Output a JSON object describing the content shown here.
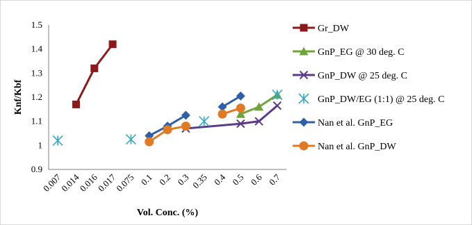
{
  "chart_data": {
    "type": "line",
    "categories": [
      "0.007",
      "0.014",
      "0.016",
      "0.017",
      "0.075",
      "0.1",
      "0.2",
      "0.3",
      "0.35",
      "0.4",
      "0.5",
      "0.6",
      "0.7"
    ],
    "xlabel": "Vol. Conc. (%)",
    "ylabel": "Knf/Kbf",
    "ylim": [
      0.9,
      1.5
    ],
    "yticks": [
      "0.9",
      "1",
      "1.1",
      "1.2",
      "1.3",
      "1.4",
      "1.5"
    ],
    "legend_position": "right",
    "grid": false,
    "series": [
      {
        "name": "Gr_DW",
        "color": "#8b1a1a",
        "marker": "square",
        "points": [
          [
            1,
            1.17
          ],
          [
            2,
            1.32
          ],
          [
            3,
            1.42
          ]
        ]
      },
      {
        "name": "GnP_EG @ 30 deg. C",
        "color": "#6fa43a",
        "marker": "triangle",
        "points": [
          [
            10,
            1.13
          ],
          [
            11,
            1.16
          ],
          [
            12,
            1.21
          ]
        ]
      },
      {
        "name": "GnP_DW @ 25 deg. C",
        "color": "#5b3a87",
        "marker": "x",
        "points": [
          [
            7,
            1.07
          ],
          [
            10,
            1.09
          ],
          [
            11,
            1.1
          ],
          [
            12,
            1.165
          ]
        ]
      },
      {
        "name": "GnP_DW/EG (1:1) @ 25 deg. C",
        "color": "#33a7c4",
        "marker": "star",
        "line": false,
        "points": [
          [
            0,
            1.02
          ],
          [
            4,
            1.025
          ],
          [
            8,
            1.1
          ],
          [
            12,
            1.21
          ]
        ]
      },
      {
        "name": "Nan et al. GnP_EG",
        "color": "#2e5fa8",
        "marker": "diamond",
        "segments": [
          [
            [
              5,
              1.04
            ],
            [
              6,
              1.08
            ],
            [
              7,
              1.125
            ]
          ],
          [
            [
              9,
              1.16
            ],
            [
              10,
              1.205
            ]
          ]
        ]
      },
      {
        "name": "Nan et al. GnP_DW",
        "color": "#e07a24",
        "marker": "circle",
        "segments": [
          [
            [
              5,
              1.015
            ],
            [
              6,
              1.065
            ],
            [
              7,
              1.08
            ]
          ],
          [
            [
              9,
              1.13
            ],
            [
              10,
              1.155
            ]
          ]
        ]
      }
    ]
  }
}
